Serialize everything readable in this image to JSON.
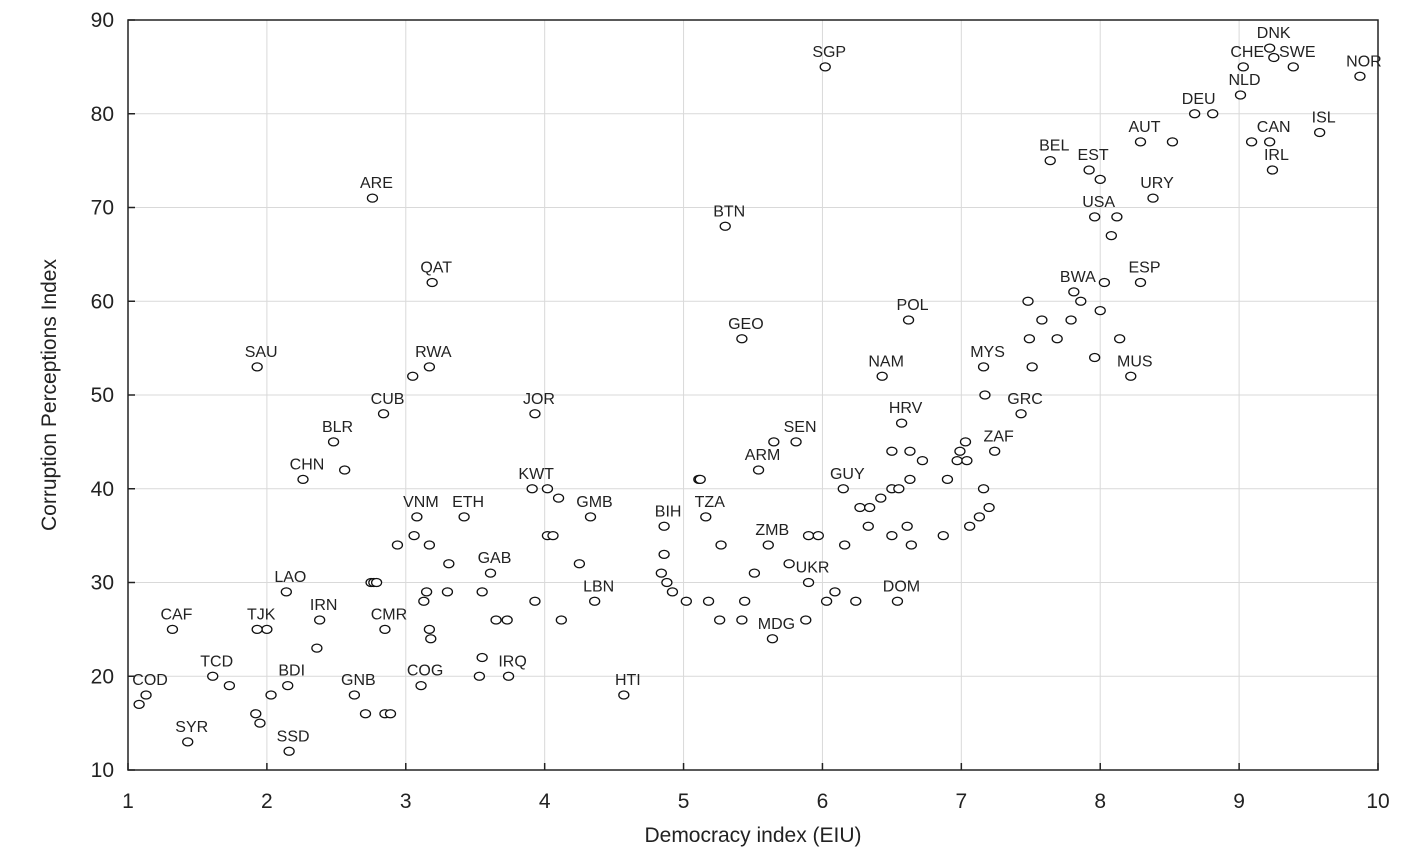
{
  "chart_data": {
    "type": "scatter",
    "title": "",
    "xlabel": "Democracy index (EIU)",
    "ylabel": "Corruption Perceptions Index",
    "xlim": [
      1,
      10
    ],
    "ylim": [
      10,
      90
    ],
    "xticks": [
      "1",
      "2",
      "3",
      "4",
      "5",
      "6",
      "7",
      "8",
      "9",
      "10"
    ],
    "yticks": [
      "10",
      "20",
      "30",
      "40",
      "50",
      "60",
      "70",
      "80",
      "90"
    ],
    "grid": true,
    "legend": "none",
    "labeled_points": [
      {
        "label": "DNK",
        "x": 9.22,
        "y": 87
      },
      {
        "label": "CHE",
        "x": 9.03,
        "y": 85
      },
      {
        "label": "SWE",
        "x": 9.39,
        "y": 85
      },
      {
        "label": "NOR",
        "x": 9.87,
        "y": 84
      },
      {
        "label": "SGP",
        "x": 6.02,
        "y": 85
      },
      {
        "label": "NLD",
        "x": 9.01,
        "y": 82
      },
      {
        "label": "DEU",
        "x": 8.68,
        "y": 80
      },
      {
        "label": "AUT",
        "x": 8.29,
        "y": 77
      },
      {
        "label": "CAN",
        "x": 9.22,
        "y": 77
      },
      {
        "label": "ISL",
        "x": 9.58,
        "y": 78
      },
      {
        "label": "BEL",
        "x": 7.64,
        "y": 75
      },
      {
        "label": "EST",
        "x": 7.92,
        "y": 74
      },
      {
        "label": "IRL",
        "x": 9.24,
        "y": 74
      },
      {
        "label": "ARE",
        "x": 2.76,
        "y": 71
      },
      {
        "label": "URY",
        "x": 8.38,
        "y": 71
      },
      {
        "label": "USA",
        "x": 7.96,
        "y": 69
      },
      {
        "label": "BTN",
        "x": 5.3,
        "y": 68
      },
      {
        "label": "QAT",
        "x": 3.19,
        "y": 62
      },
      {
        "label": "ESP",
        "x": 8.29,
        "y": 62
      },
      {
        "label": "BWA",
        "x": 7.81,
        "y": 61
      },
      {
        "label": "POL",
        "x": 6.62,
        "y": 58
      },
      {
        "label": "GEO",
        "x": 5.42,
        "y": 56
      },
      {
        "label": "SAU",
        "x": 1.93,
        "y": 53
      },
      {
        "label": "RWA",
        "x": 3.17,
        "y": 53
      },
      {
        "label": "MYS",
        "x": 7.16,
        "y": 53
      },
      {
        "label": "NAM",
        "x": 6.43,
        "y": 52
      },
      {
        "label": "MUS",
        "x": 8.22,
        "y": 52
      },
      {
        "label": "GRC",
        "x": 7.43,
        "y": 48
      },
      {
        "label": "CUB",
        "x": 2.84,
        "y": 48
      },
      {
        "label": "JOR",
        "x": 3.93,
        "y": 48
      },
      {
        "label": "HRV",
        "x": 6.57,
        "y": 47
      },
      {
        "label": "BLR",
        "x": 2.48,
        "y": 45
      },
      {
        "label": "SEN",
        "x": 5.81,
        "y": 45
      },
      {
        "label": "ZAF",
        "x": 7.24,
        "y": 44
      },
      {
        "label": "ARM",
        "x": 5.54,
        "y": 42
      },
      {
        "label": "CHN",
        "x": 2.26,
        "y": 41
      },
      {
        "label": "KWT",
        "x": 3.91,
        "y": 40
      },
      {
        "label": "GUY",
        "x": 6.15,
        "y": 40
      },
      {
        "label": "VNM",
        "x": 3.08,
        "y": 37
      },
      {
        "label": "ETH",
        "x": 3.42,
        "y": 37
      },
      {
        "label": "GMB",
        "x": 4.33,
        "y": 37
      },
      {
        "label": "TZA",
        "x": 5.16,
        "y": 37
      },
      {
        "label": "BIH",
        "x": 4.86,
        "y": 36
      },
      {
        "label": "ZMB",
        "x": 5.61,
        "y": 34
      },
      {
        "label": "GAB",
        "x": 3.61,
        "y": 31
      },
      {
        "label": "UKR",
        "x": 5.9,
        "y": 30
      },
      {
        "label": "LAO",
        "x": 2.14,
        "y": 29
      },
      {
        "label": "CMR",
        "x": 2.85,
        "y": 25
      },
      {
        "label": "LBN",
        "x": 4.36,
        "y": 28
      },
      {
        "label": "DOM",
        "x": 6.54,
        "y": 28
      },
      {
        "label": "IRN",
        "x": 2.38,
        "y": 26
      },
      {
        "label": "MDG",
        "x": 5.64,
        "y": 24
      },
      {
        "label": "CAF",
        "x": 1.32,
        "y": 25
      },
      {
        "label": "TJK",
        "x": 1.93,
        "y": 25
      },
      {
        "label": "TCD",
        "x": 1.61,
        "y": 20
      },
      {
        "label": "BDI",
        "x": 2.15,
        "y": 19
      },
      {
        "label": "IRQ",
        "x": 3.74,
        "y": 20
      },
      {
        "label": "COG",
        "x": 3.11,
        "y": 19
      },
      {
        "label": "HTI",
        "x": 4.57,
        "y": 18
      },
      {
        "label": "GNB",
        "x": 2.63,
        "y": 18
      },
      {
        "label": "COD",
        "x": 1.13,
        "y": 18
      },
      {
        "label": "SYR",
        "x": 1.43,
        "y": 13
      },
      {
        "label": "SSD",
        "x": 2.16,
        "y": 12
      }
    ],
    "unlabeled_points": [
      {
        "x": 9.25,
        "y": 86
      },
      {
        "x": 9.09,
        "y": 77
      },
      {
        "x": 8.52,
        "y": 77
      },
      {
        "x": 8.81,
        "y": 80
      },
      {
        "x": 8.0,
        "y": 73
      },
      {
        "x": 8.12,
        "y": 69
      },
      {
        "x": 8.08,
        "y": 67
      },
      {
        "x": 7.48,
        "y": 60
      },
      {
        "x": 7.58,
        "y": 58
      },
      {
        "x": 7.49,
        "y": 56
      },
      {
        "x": 7.79,
        "y": 58
      },
      {
        "x": 7.86,
        "y": 60
      },
      {
        "x": 7.69,
        "y": 56
      },
      {
        "x": 8.0,
        "y": 59
      },
      {
        "x": 8.03,
        "y": 62
      },
      {
        "x": 8.14,
        "y": 56
      },
      {
        "x": 7.96,
        "y": 54
      },
      {
        "x": 7.51,
        "y": 53
      },
      {
        "x": 7.17,
        "y": 50
      },
      {
        "x": 3.05,
        "y": 52
      },
      {
        "x": 2.56,
        "y": 42
      },
      {
        "x": 5.65,
        "y": 45
      },
      {
        "x": 7.03,
        "y": 45
      },
      {
        "x": 6.99,
        "y": 44
      },
      {
        "x": 6.97,
        "y": 43
      },
      {
        "x": 7.04,
        "y": 43
      },
      {
        "x": 6.5,
        "y": 44
      },
      {
        "x": 6.63,
        "y": 44
      },
      {
        "x": 6.72,
        "y": 43
      },
      {
        "x": 6.5,
        "y": 40
      },
      {
        "x": 6.55,
        "y": 40
      },
      {
        "x": 6.42,
        "y": 39
      },
      {
        "x": 6.63,
        "y": 41
      },
      {
        "x": 6.9,
        "y": 41
      },
      {
        "x": 7.16,
        "y": 40
      },
      {
        "x": 6.27,
        "y": 38
      },
      {
        "x": 6.34,
        "y": 38
      },
      {
        "x": 7.2,
        "y": 38
      },
      {
        "x": 7.13,
        "y": 37
      },
      {
        "x": 7.06,
        "y": 36
      },
      {
        "x": 6.33,
        "y": 36
      },
      {
        "x": 6.61,
        "y": 36
      },
      {
        "x": 6.5,
        "y": 35
      },
      {
        "x": 6.87,
        "y": 35
      },
      {
        "x": 6.64,
        "y": 34
      },
      {
        "x": 6.16,
        "y": 34
      },
      {
        "x": 5.9,
        "y": 35
      },
      {
        "x": 5.97,
        "y": 35
      },
      {
        "x": 5.11,
        "y": 41
      },
      {
        "x": 5.12,
        "y": 41
      },
      {
        "x": 4.02,
        "y": 40
      },
      {
        "x": 4.1,
        "y": 39
      },
      {
        "x": 4.02,
        "y": 35
      },
      {
        "x": 4.06,
        "y": 35
      },
      {
        "x": 3.06,
        "y": 35
      },
      {
        "x": 2.94,
        "y": 34
      },
      {
        "x": 3.17,
        "y": 34
      },
      {
        "x": 3.31,
        "y": 32
      },
      {
        "x": 2.75,
        "y": 30
      },
      {
        "x": 2.77,
        "y": 30
      },
      {
        "x": 2.79,
        "y": 30
      },
      {
        "x": 3.15,
        "y": 29
      },
      {
        "x": 3.13,
        "y": 28
      },
      {
        "x": 3.3,
        "y": 29
      },
      {
        "x": 3.17,
        "y": 25
      },
      {
        "x": 3.18,
        "y": 24
      },
      {
        "x": 3.55,
        "y": 29
      },
      {
        "x": 4.25,
        "y": 32
      },
      {
        "x": 3.93,
        "y": 28
      },
      {
        "x": 3.65,
        "y": 26
      },
      {
        "x": 3.73,
        "y": 26
      },
      {
        "x": 4.12,
        "y": 26
      },
      {
        "x": 2.36,
        "y": 23
      },
      {
        "x": 2.0,
        "y": 25
      },
      {
        "x": 4.86,
        "y": 33
      },
      {
        "x": 4.84,
        "y": 31
      },
      {
        "x": 4.88,
        "y": 30
      },
      {
        "x": 4.92,
        "y": 29
      },
      {
        "x": 5.02,
        "y": 28
      },
      {
        "x": 5.18,
        "y": 28
      },
      {
        "x": 5.26,
        "y": 26
      },
      {
        "x": 5.42,
        "y": 26
      },
      {
        "x": 5.44,
        "y": 28
      },
      {
        "x": 5.27,
        "y": 34
      },
      {
        "x": 5.51,
        "y": 31
      },
      {
        "x": 5.76,
        "y": 32
      },
      {
        "x": 5.88,
        "y": 26
      },
      {
        "x": 6.03,
        "y": 28
      },
      {
        "x": 6.09,
        "y": 29
      },
      {
        "x": 6.24,
        "y": 28
      },
      {
        "x": 3.53,
        "y": 20
      },
      {
        "x": 3.55,
        "y": 22
      },
      {
        "x": 1.73,
        "y": 19
      },
      {
        "x": 2.03,
        "y": 18
      },
      {
        "x": 1.08,
        "y": 17
      },
      {
        "x": 1.92,
        "y": 16
      },
      {
        "x": 1.95,
        "y": 15
      },
      {
        "x": 2.71,
        "y": 16
      },
      {
        "x": 2.85,
        "y": 16
      },
      {
        "x": 2.89,
        "y": 16
      }
    ]
  }
}
